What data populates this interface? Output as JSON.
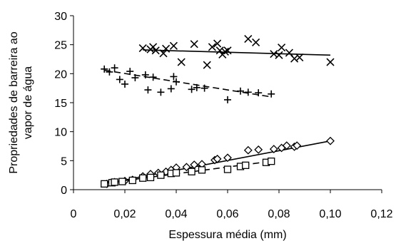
{
  "chart_data": {
    "type": "scatter",
    "title": "",
    "xlabel": "Espessura média (mm)",
    "ylabel_lines": [
      "Propriedades de barreira ao",
      "vapor de água"
    ],
    "xlim": [
      0,
      0.12
    ],
    "ylim": [
      0,
      30
    ],
    "x_ticks": [
      0,
      0.02,
      0.04,
      0.06,
      0.08,
      0.1,
      0.12
    ],
    "x_tick_labels": [
      "0",
      "0,02",
      "0,04",
      "0,06",
      "0,08",
      "0,10",
      "0,12"
    ],
    "y_ticks": [
      0,
      5,
      10,
      15,
      20,
      25,
      30
    ],
    "y_tick_labels": [
      "0",
      "5",
      "10",
      "15",
      "20",
      "25",
      "30"
    ],
    "grid": false,
    "legend": "none",
    "series": [
      {
        "marker": "x",
        "line_style": "solid",
        "trend": [
          [
            0.027,
            24.1
          ],
          [
            0.1,
            23.2
          ]
        ],
        "points": [
          [
            0.027,
            24.4
          ],
          [
            0.03,
            24.2
          ],
          [
            0.031,
            24.6
          ],
          [
            0.032,
            24.0
          ],
          [
            0.035,
            23.5
          ],
          [
            0.036,
            24.3
          ],
          [
            0.039,
            24.8
          ],
          [
            0.042,
            22.0
          ],
          [
            0.047,
            25.1
          ],
          [
            0.052,
            21.5
          ],
          [
            0.054,
            24.6
          ],
          [
            0.056,
            25.2
          ],
          [
            0.057,
            24.0
          ],
          [
            0.058,
            23.3
          ],
          [
            0.059,
            23.8
          ],
          [
            0.06,
            24.0
          ],
          [
            0.068,
            26.0
          ],
          [
            0.071,
            25.4
          ],
          [
            0.078,
            23.4
          ],
          [
            0.08,
            23.2
          ],
          [
            0.081,
            24.5
          ],
          [
            0.084,
            23.6
          ],
          [
            0.086,
            22.6
          ],
          [
            0.088,
            22.8
          ],
          [
            0.1,
            22.0
          ]
        ]
      },
      {
        "marker": "plus",
        "line_style": "dashed",
        "trend": [
          [
            0.012,
            20.6
          ],
          [
            0.077,
            16.0
          ]
        ],
        "points": [
          [
            0.012,
            20.8
          ],
          [
            0.014,
            20.3
          ],
          [
            0.016,
            21.0
          ],
          [
            0.018,
            19.0
          ],
          [
            0.02,
            18.2
          ],
          [
            0.022,
            20.4
          ],
          [
            0.024,
            19.3
          ],
          [
            0.028,
            19.8
          ],
          [
            0.029,
            17.2
          ],
          [
            0.031,
            19.4
          ],
          [
            0.034,
            16.8
          ],
          [
            0.038,
            17.4
          ],
          [
            0.039,
            19.5
          ],
          [
            0.04,
            18.6
          ],
          [
            0.046,
            17.3
          ],
          [
            0.048,
            17.6
          ],
          [
            0.051,
            17.5
          ],
          [
            0.06,
            15.5
          ],
          [
            0.065,
            17.0
          ],
          [
            0.068,
            16.8
          ],
          [
            0.072,
            16.7
          ],
          [
            0.077,
            16.5
          ]
        ]
      },
      {
        "marker": "diamond",
        "line_style": "solid",
        "trend": [
          [
            0.012,
            1.0
          ],
          [
            0.1,
            8.4
          ]
        ],
        "points": [
          [
            0.013,
            1.0
          ],
          [
            0.016,
            1.3
          ],
          [
            0.02,
            1.5
          ],
          [
            0.023,
            1.7
          ],
          [
            0.027,
            2.3
          ],
          [
            0.03,
            2.7
          ],
          [
            0.033,
            2.9
          ],
          [
            0.036,
            3.1
          ],
          [
            0.038,
            3.4
          ],
          [
            0.04,
            3.8
          ],
          [
            0.044,
            3.9
          ],
          [
            0.047,
            4.3
          ],
          [
            0.05,
            4.4
          ],
          [
            0.055,
            5.1
          ],
          [
            0.056,
            5.3
          ],
          [
            0.06,
            5.5
          ],
          [
            0.068,
            6.8
          ],
          [
            0.072,
            6.9
          ],
          [
            0.078,
            7.0
          ],
          [
            0.081,
            7.2
          ],
          [
            0.083,
            7.6
          ],
          [
            0.086,
            7.4
          ],
          [
            0.087,
            7.6
          ],
          [
            0.1,
            8.4
          ]
        ]
      },
      {
        "marker": "square",
        "line_style": "dashed",
        "trend": [
          [
            0.012,
            1.1
          ],
          [
            0.077,
            4.9
          ]
        ],
        "points": [
          [
            0.012,
            1.0
          ],
          [
            0.015,
            1.2
          ],
          [
            0.016,
            1.3
          ],
          [
            0.019,
            1.4
          ],
          [
            0.023,
            1.6
          ],
          [
            0.027,
            2.0
          ],
          [
            0.03,
            2.1
          ],
          [
            0.034,
            2.5
          ],
          [
            0.038,
            2.8
          ],
          [
            0.04,
            2.9
          ],
          [
            0.046,
            3.1
          ],
          [
            0.05,
            3.4
          ],
          [
            0.06,
            3.5
          ],
          [
            0.065,
            4.0
          ],
          [
            0.067,
            4.2
          ],
          [
            0.075,
            4.7
          ],
          [
            0.077,
            4.9
          ]
        ]
      }
    ]
  }
}
